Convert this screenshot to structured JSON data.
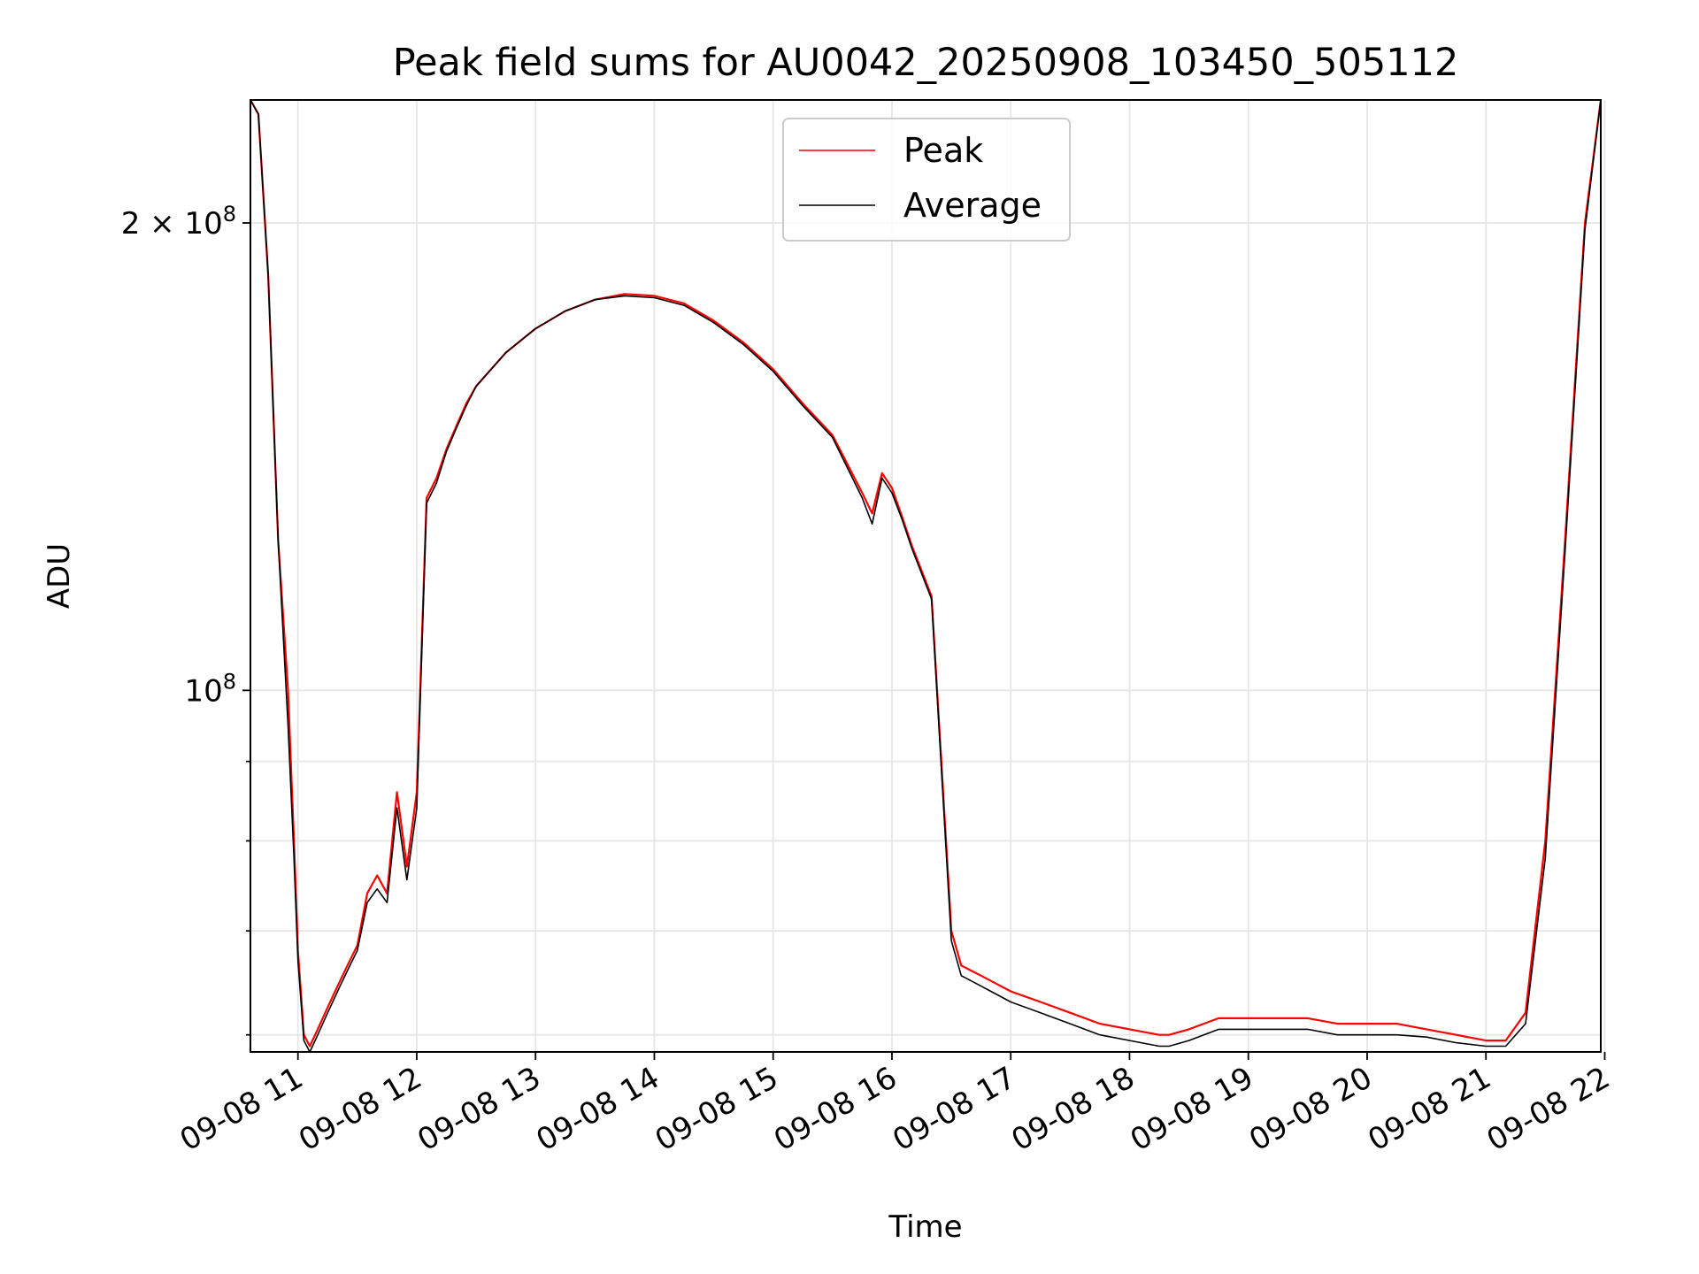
{
  "chart_data": {
    "type": "line",
    "title": "Peak field sums for AU0042_20250908_103450_505112",
    "xlabel": "Time",
    "ylabel": "ADU",
    "y_scale": "log",
    "x_range": [
      "2025-09-08T10:36",
      "2025-09-08T21:58"
    ],
    "ylim": [
      58500000,
      240000000
    ],
    "grid": true,
    "legend_position": "upper center",
    "x_ticks": [
      {
        "value": "2025-09-08T11:00",
        "label": "09-08 11"
      },
      {
        "value": "2025-09-08T12:00",
        "label": "09-08 12"
      },
      {
        "value": "2025-09-08T13:00",
        "label": "09-08 13"
      },
      {
        "value": "2025-09-08T14:00",
        "label": "09-08 14"
      },
      {
        "value": "2025-09-08T15:00",
        "label": "09-08 15"
      },
      {
        "value": "2025-09-08T16:00",
        "label": "09-08 16"
      },
      {
        "value": "2025-09-08T17:00",
        "label": "09-08 17"
      },
      {
        "value": "2025-09-08T18:00",
        "label": "09-08 18"
      },
      {
        "value": "2025-09-08T19:00",
        "label": "09-08 19"
      },
      {
        "value": "2025-09-08T20:00",
        "label": "09-08 20"
      },
      {
        "value": "2025-09-08T21:00",
        "label": "09-08 21"
      },
      {
        "value": "2025-09-08T22:00",
        "label": "09-08 22"
      }
    ],
    "y_major_ticks": [
      {
        "value": 100000000,
        "base": "10",
        "exp": "8",
        "coef": ""
      },
      {
        "value": 200000000,
        "base": "10",
        "exp": "8",
        "coef": "2 × "
      }
    ],
    "y_minor_ticks": [
      60000000,
      70000000,
      80000000,
      90000000
    ],
    "series": [
      {
        "name": "Peak",
        "color": "#ff0000",
        "x": [
          "10:36",
          "10:40",
          "10:45",
          "10:50",
          "10:55",
          "10:58",
          "11:00",
          "11:03",
          "11:06",
          "11:10",
          "11:15",
          "11:20",
          "11:25",
          "11:30",
          "11:35",
          "11:40",
          "11:45",
          "11:50",
          "11:55",
          "12:00",
          "12:05",
          "12:10",
          "12:15",
          "12:20",
          "12:25",
          "12:30",
          "12:45",
          "13:00",
          "13:15",
          "13:30",
          "13:45",
          "14:00",
          "14:15",
          "14:30",
          "14:45",
          "15:00",
          "15:15",
          "15:30",
          "15:45",
          "15:50",
          "15:55",
          "16:00",
          "16:05",
          "16:10",
          "16:20",
          "16:30",
          "16:35",
          "16:40",
          "16:45",
          "16:50",
          "17:00",
          "17:15",
          "17:30",
          "17:45",
          "18:00",
          "18:15",
          "18:20",
          "18:30",
          "18:45",
          "19:00",
          "19:15",
          "19:30",
          "19:45",
          "20:00",
          "20:15",
          "20:30",
          "20:45",
          "21:00",
          "21:10",
          "21:20",
          "21:30",
          "21:40",
          "21:50",
          "21:58"
        ],
        "values": [
          240000000,
          235000000,
          185000000,
          125000000,
          100000000,
          80000000,
          68000000,
          60000000,
          59000000,
          60500000,
          62500000,
          64500000,
          66500000,
          68500000,
          74000000,
          76000000,
          74000000,
          86000000,
          77000000,
          86000000,
          133000000,
          137000000,
          143000000,
          148000000,
          153000000,
          157000000,
          165000000,
          171000000,
          175500000,
          178500000,
          180000000,
          179500000,
          177500000,
          173000000,
          167500000,
          161000000,
          153000000,
          146000000,
          134000000,
          130000000,
          138000000,
          135000000,
          129500000,
          124000000,
          115000000,
          70000000,
          66500000,
          66000000,
          65500000,
          65000000,
          64000000,
          63000000,
          62000000,
          61000000,
          60500000,
          60000000,
          60000000,
          60500000,
          61500000,
          61500000,
          61500000,
          61500000,
          61000000,
          61000000,
          61000000,
          60500000,
          60000000,
          59500000,
          59500000,
          62000000,
          80000000,
          125000000,
          200000000,
          240000000
        ]
      },
      {
        "name": "Average",
        "color": "#000000",
        "x": [
          "10:36",
          "10:40",
          "10:45",
          "10:50",
          "10:55",
          "10:58",
          "11:00",
          "11:03",
          "11:06",
          "11:10",
          "11:15",
          "11:20",
          "11:25",
          "11:30",
          "11:35",
          "11:40",
          "11:45",
          "11:50",
          "11:55",
          "12:00",
          "12:05",
          "12:10",
          "12:15",
          "12:20",
          "12:25",
          "12:30",
          "12:45",
          "13:00",
          "13:15",
          "13:30",
          "13:45",
          "14:00",
          "14:15",
          "14:30",
          "14:45",
          "15:00",
          "15:15",
          "15:30",
          "15:45",
          "15:50",
          "15:55",
          "16:00",
          "16:05",
          "16:10",
          "16:20",
          "16:30",
          "16:35",
          "16:40",
          "16:45",
          "16:50",
          "17:00",
          "17:15",
          "17:30",
          "17:45",
          "18:00",
          "18:15",
          "18:20",
          "18:30",
          "18:45",
          "19:00",
          "19:15",
          "19:30",
          "19:45",
          "20:00",
          "20:15",
          "20:30",
          "20:45",
          "21:00",
          "21:10",
          "21:20",
          "21:30",
          "21:40",
          "21:50",
          "21:58"
        ],
        "values": [
          240000000,
          235000000,
          185000000,
          125000000,
          95000000,
          78000000,
          67000000,
          59500000,
          58500000,
          60000000,
          62000000,
          64000000,
          66000000,
          68000000,
          73000000,
          74500000,
          73000000,
          84000000,
          75500000,
          84000000,
          132000000,
          136000000,
          142500000,
          147500000,
          152500000,
          157000000,
          165000000,
          171000000,
          175500000,
          178500000,
          179500000,
          179000000,
          177000000,
          172500000,
          167000000,
          160500000,
          152500000,
          145500000,
          133000000,
          128000000,
          137000000,
          134000000,
          129000000,
          123500000,
          114500000,
          69000000,
          65500000,
          65000000,
          64500000,
          64000000,
          63000000,
          62000000,
          61000000,
          60000000,
          59500000,
          59000000,
          59000000,
          59500000,
          60500000,
          60500000,
          60500000,
          60500000,
          60000000,
          60000000,
          60000000,
          59800000,
          59300000,
          59000000,
          59000000,
          61000000,
          78000000,
          123000000,
          198000000,
          240000000
        ]
      }
    ],
    "legend": [
      {
        "label": "Peak",
        "color": "#ff0000"
      },
      {
        "label": "Average",
        "color": "#000000"
      }
    ]
  }
}
